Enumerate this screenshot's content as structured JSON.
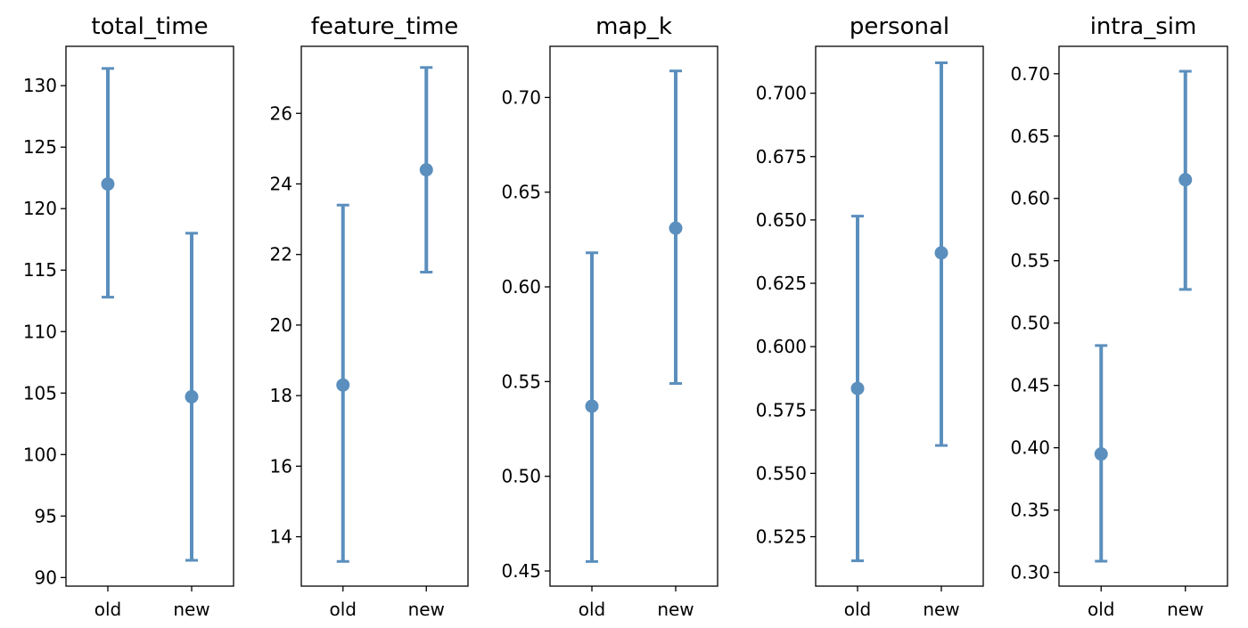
{
  "chart_data": [
    {
      "type": "errorbar",
      "title": "total_time",
      "categories": [
        "old",
        "new"
      ],
      "means": [
        122.0,
        104.7
      ],
      "lower": [
        112.8,
        91.4
      ],
      "upper": [
        131.4,
        118.0
      ],
      "ylim": [
        89.3,
        133.2
      ],
      "yticks": [
        90,
        95,
        100,
        105,
        110,
        115,
        120,
        125,
        130
      ],
      "ytick_labels": [
        "90",
        "95",
        "100",
        "105",
        "110",
        "115",
        "120",
        "125",
        "130"
      ]
    },
    {
      "type": "errorbar",
      "title": "feature_time",
      "categories": [
        "old",
        "new"
      ],
      "means": [
        18.3,
        24.4
      ],
      "lower": [
        13.3,
        21.5
      ],
      "upper": [
        23.4,
        27.3
      ],
      "ylim": [
        12.6,
        27.9
      ],
      "yticks": [
        14,
        16,
        18,
        20,
        22,
        24,
        26
      ],
      "ytick_labels": [
        "14",
        "16",
        "18",
        "20",
        "22",
        "24",
        "26"
      ]
    },
    {
      "type": "errorbar",
      "title": "map_k",
      "categories": [
        "old",
        "new"
      ],
      "means": [
        0.537,
        0.631
      ],
      "lower": [
        0.455,
        0.549
      ],
      "upper": [
        0.618,
        0.714
      ],
      "ylim": [
        0.442,
        0.727
      ],
      "yticks": [
        0.45,
        0.5,
        0.55,
        0.6,
        0.65,
        0.7
      ],
      "ytick_labels": [
        "0.45",
        "0.50",
        "0.55",
        "0.60",
        "0.65",
        "0.70"
      ]
    },
    {
      "type": "errorbar",
      "title": "personal",
      "categories": [
        "old",
        "new"
      ],
      "means": [
        0.5835,
        0.637
      ],
      "lower": [
        0.5155,
        0.561
      ],
      "upper": [
        0.6515,
        0.712
      ],
      "ylim": [
        0.5055,
        0.7185
      ],
      "yticks": [
        0.525,
        0.55,
        0.575,
        0.6,
        0.625,
        0.65,
        0.675,
        0.7
      ],
      "ytick_labels": [
        "0.525",
        "0.550",
        "0.575",
        "0.600",
        "0.625",
        "0.650",
        "0.675",
        "0.700"
      ]
    },
    {
      "type": "errorbar",
      "title": "intra_sim",
      "categories": [
        "old",
        "new"
      ],
      "means": [
        0.395,
        0.615
      ],
      "lower": [
        0.309,
        0.527
      ],
      "upper": [
        0.482,
        0.702
      ],
      "ylim": [
        0.289,
        0.722
      ],
      "yticks": [
        0.3,
        0.35,
        0.4,
        0.45,
        0.5,
        0.55,
        0.6,
        0.65,
        0.7
      ],
      "ytick_labels": [
        "0.30",
        "0.35",
        "0.40",
        "0.45",
        "0.50",
        "0.55",
        "0.60",
        "0.65",
        "0.70"
      ]
    }
  ],
  "colors": {
    "series": "#5b8fbd",
    "axis": "#000000",
    "background": "#ffffff"
  }
}
